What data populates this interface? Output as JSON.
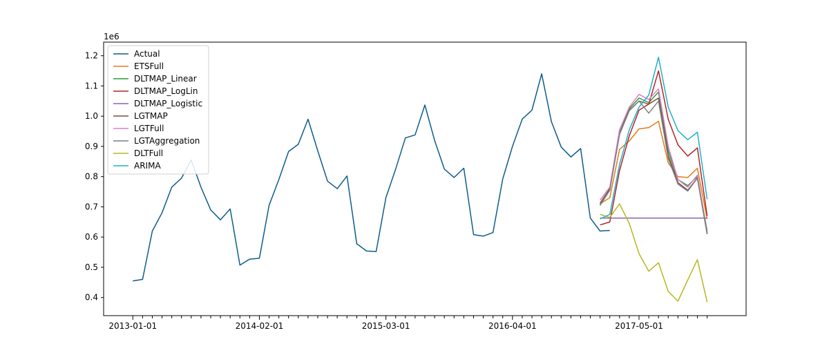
{
  "chart_data": {
    "type": "line",
    "title": "",
    "xlabel": "",
    "ylabel": "",
    "y_offset_label": "1e6",
    "y_ticks": [
      0.4,
      0.5,
      0.6,
      0.7,
      0.8,
      0.9,
      1.0,
      1.1,
      1.2
    ],
    "ylim": [
      0.34,
      1.245
    ],
    "xlim": [
      -3,
      63
    ],
    "x_tick_labels": [
      {
        "index": 0,
        "label": "2013-01-01"
      },
      {
        "index": 13,
        "label": "2014-02-01"
      },
      {
        "index": 26,
        "label": "2015-03-01"
      },
      {
        "index": 39,
        "label": "2016-04-01"
      },
      {
        "index": 52,
        "label": "2017-05-01"
      }
    ],
    "x_start_period": "2013-01",
    "legend_position": "upper-left",
    "grid": false,
    "series": [
      {
        "name": "Actual",
        "color": "#0d5b8c",
        "x_start": 0,
        "values": [
          0.455,
          0.46,
          0.62,
          0.68,
          0.765,
          0.795,
          0.855,
          0.765,
          0.69,
          0.657,
          0.693,
          0.507,
          0.527,
          0.53,
          0.705,
          0.79,
          0.883,
          0.907,
          0.99,
          0.885,
          0.785,
          0.76,
          0.802,
          0.578,
          0.554,
          0.552,
          0.73,
          0.825,
          0.928,
          0.938,
          1.037,
          0.92,
          0.825,
          0.797,
          0.828,
          0.608,
          0.603,
          0.615,
          0.792,
          0.9,
          0.99,
          1.02,
          1.14,
          0.982,
          0.898,
          0.865,
          0.893,
          0.663,
          0.62,
          0.622
        ]
      },
      {
        "name": "ETSFull",
        "color": "#e07b1a",
        "x_start": 48,
        "values": [
          0.71,
          0.73,
          0.89,
          0.918,
          0.958,
          0.962,
          0.983,
          0.845,
          0.8,
          0.797,
          0.828,
          0.66
        ]
      },
      {
        "name": "DLTMAP_Linear",
        "color": "#2a9a3a",
        "x_start": 48,
        "values": [
          0.705,
          0.755,
          0.945,
          1.025,
          1.06,
          1.045,
          1.08,
          0.885,
          0.79,
          0.77,
          0.8,
          0.62
        ]
      },
      {
        "name": "DLTMAP_LogLin",
        "color": "#b32424",
        "x_start": 48,
        "values": [
          0.64,
          0.65,
          0.82,
          0.935,
          1.02,
          1.04,
          1.15,
          0.99,
          0.905,
          0.868,
          0.895,
          0.67
        ]
      },
      {
        "name": "DLTMAP_Logistic",
        "color": "#8a63b5",
        "x_start": 48,
        "values": [
          0.663,
          0.663,
          0.663,
          0.663,
          0.663,
          0.663,
          0.663,
          0.663,
          0.663,
          0.663,
          0.663,
          0.663
        ]
      },
      {
        "name": "LGTMAP",
        "color": "#7b4f3e",
        "x_start": 48,
        "values": [
          0.712,
          0.76,
          0.94,
          1.02,
          1.05,
          1.04,
          1.06,
          0.87,
          0.78,
          0.755,
          0.795,
          0.61
        ]
      },
      {
        "name": "LGTFull",
        "color": "#e07ac8",
        "x_start": 48,
        "values": [
          0.722,
          0.765,
          0.955,
          1.03,
          1.072,
          1.055,
          1.09,
          0.9,
          0.79,
          0.765,
          0.805,
          0.615
        ]
      },
      {
        "name": "LGTAggregation",
        "color": "#7f7f7f",
        "x_start": 48,
        "values": [
          0.707,
          0.755,
          0.94,
          1.018,
          1.05,
          1.01,
          1.05,
          0.86,
          0.775,
          0.752,
          0.795,
          0.615
        ]
      },
      {
        "name": "DLTFull",
        "color": "#b5b81e",
        "x_start": 48,
        "values": [
          0.675,
          0.665,
          0.71,
          0.645,
          0.545,
          0.487,
          0.515,
          0.42,
          0.388,
          0.458,
          0.525,
          0.385
        ]
      },
      {
        "name": "ARIMA",
        "color": "#1fb0c8",
        "x_start": 48,
        "values": [
          0.66,
          0.675,
          0.84,
          0.955,
          1.03,
          1.07,
          1.195,
          1.03,
          0.952,
          0.922,
          0.947,
          0.725
        ]
      }
    ]
  }
}
